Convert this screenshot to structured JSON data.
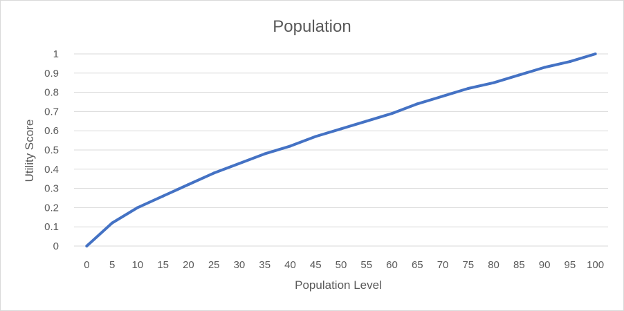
{
  "chart_data": {
    "type": "line",
    "title": "Population",
    "xlabel": "Population Level",
    "ylabel": "Utility Score",
    "categories": [
      "0",
      "5",
      "10",
      "15",
      "20",
      "25",
      "30",
      "35",
      "40",
      "45",
      "50",
      "55",
      "60",
      "65",
      "70",
      "75",
      "80",
      "85",
      "90",
      "95",
      "100"
    ],
    "y_ticks": [
      "0",
      "0.1",
      "0.2",
      "0.3",
      "0.4",
      "0.5",
      "0.6",
      "0.7",
      "0.8",
      "0.9",
      "1"
    ],
    "ylim": [
      0,
      1
    ],
    "grid": true,
    "legend": "none",
    "series": [
      {
        "values": [
          0,
          0.12,
          0.2,
          0.26,
          0.32,
          0.38,
          0.43,
          0.48,
          0.52,
          0.57,
          0.61,
          0.65,
          0.69,
          0.74,
          0.78,
          0.82,
          0.85,
          0.89,
          0.93,
          0.96,
          1.0
        ],
        "color": "#4472c4"
      }
    ],
    "gridline_color": "#d9d9d9",
    "text_color": "#595959"
  }
}
